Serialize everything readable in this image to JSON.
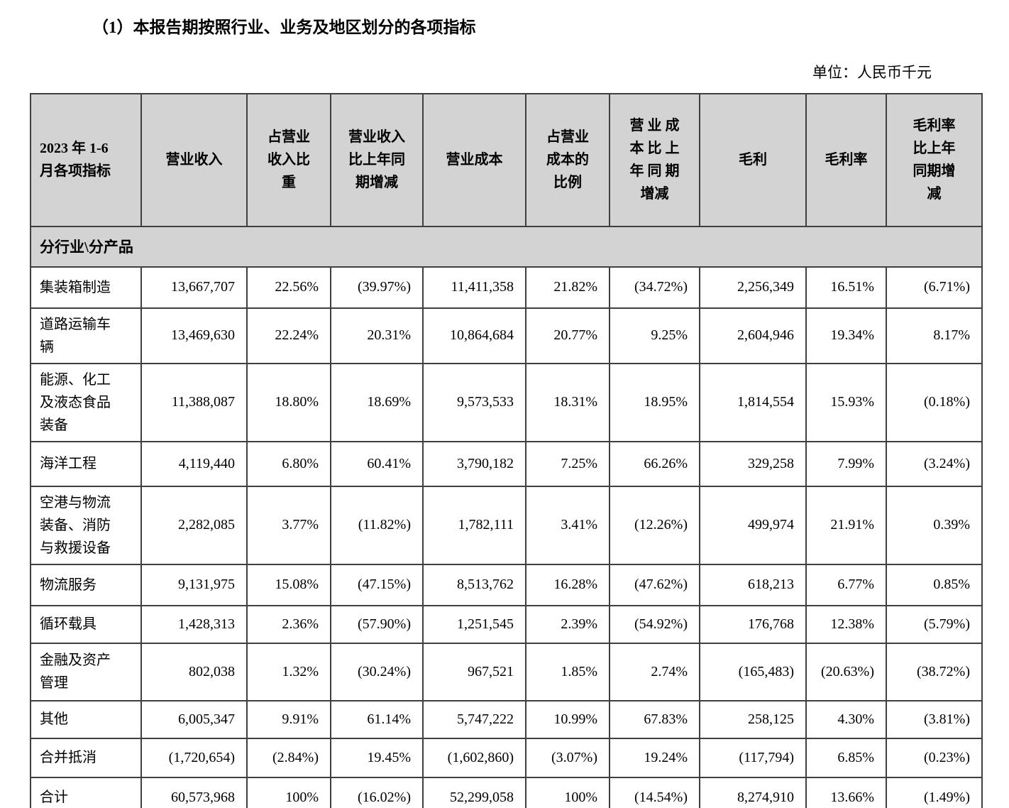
{
  "title": "（1）本报告期按照行业、业务及地区划分的各项指标",
  "unit_label": "单位：人民币千元",
  "table": {
    "header": [
      "2023 年 1-6\n月各项指标",
      "营业收入",
      "占营业\n收入比\n重",
      "营业收入\n比上年同\n期增减",
      "营业成本",
      "占营业\n成本的\n比例",
      "营 业 成\n本 比 上\n年 同 期\n增减",
      "毛利",
      "毛利率",
      "毛利率\n比上年\n同期增\n减"
    ],
    "section_label": "分行业\\分产品",
    "rows": [
      {
        "label": "集装箱制造",
        "values": [
          "13,667,707",
          "22.56%",
          "(39.97%)",
          "11,411,358",
          "21.82%",
          "(34.72%)",
          "2,256,349",
          "16.51%",
          "(6.71%)"
        ]
      },
      {
        "label": "道路运输车辆",
        "values": [
          "13,469,630",
          "22.24%",
          "20.31%",
          "10,864,684",
          "20.77%",
          "9.25%",
          "2,604,946",
          "19.34%",
          "8.17%"
        ]
      },
      {
        "label": "能源、化工及液态食品装备",
        "values": [
          "11,388,087",
          "18.80%",
          "18.69%",
          "9,573,533",
          "18.31%",
          "18.95%",
          "1,814,554",
          "15.93%",
          "(0.18%)"
        ]
      },
      {
        "label": "海洋工程",
        "values": [
          "4,119,440",
          "6.80%",
          "60.41%",
          "3,790,182",
          "7.25%",
          "66.26%",
          "329,258",
          "7.99%",
          "(3.24%)"
        ]
      },
      {
        "label": "空港与物流装备、消防与救援设备",
        "values": [
          "2,282,085",
          "3.77%",
          "(11.82%)",
          "1,782,111",
          "3.41%",
          "(12.26%)",
          "499,974",
          "21.91%",
          "0.39%"
        ]
      },
      {
        "label": "物流服务",
        "values": [
          "9,131,975",
          "15.08%",
          "(47.15%)",
          "8,513,762",
          "16.28%",
          "(47.62%)",
          "618,213",
          "6.77%",
          "0.85%"
        ]
      },
      {
        "label": "循环载具",
        "values": [
          "1,428,313",
          "2.36%",
          "(57.90%)",
          "1,251,545",
          "2.39%",
          "(54.92%)",
          "176,768",
          "12.38%",
          "(5.79%)"
        ]
      },
      {
        "label": "金融及资产管理",
        "values": [
          "802,038",
          "1.32%",
          "(30.24%)",
          "967,521",
          "1.85%",
          "2.74%",
          "(165,483)",
          "(20.63%)",
          "(38.72%)"
        ]
      },
      {
        "label": "其他",
        "values": [
          "6,005,347",
          "9.91%",
          "61.14%",
          "5,747,222",
          "10.99%",
          "67.83%",
          "258,125",
          "4.30%",
          "(3.81%)"
        ]
      },
      {
        "label": "合并抵消",
        "values": [
          "(1,720,654)",
          "(2.84%)",
          "19.45%",
          "(1,602,860)",
          "(3.07%)",
          "19.24%",
          "(117,794)",
          "6.85%",
          "(0.23%)"
        ]
      },
      {
        "label": "合计",
        "values": [
          "60,573,968",
          "100%",
          "(16.02%)",
          "52,299,058",
          "100%",
          "(14.54%)",
          "8,274,910",
          "13.66%",
          "(1.49%)"
        ]
      }
    ]
  }
}
